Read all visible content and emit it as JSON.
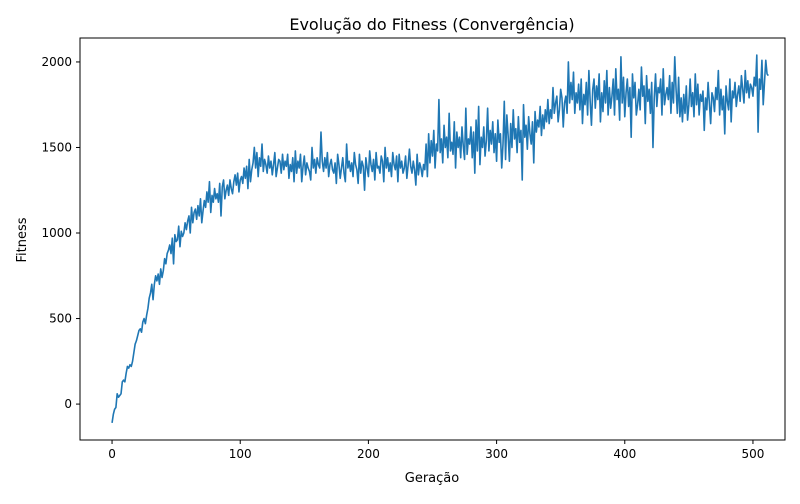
{
  "chart_data": {
    "type": "line",
    "title": "Evolução do Fitness (Convergência)",
    "xlabel": "Geração",
    "ylabel": "Fitness",
    "xlim": [
      -25,
      525
    ],
    "ylim": [
      -210,
      2140
    ],
    "xticks": [
      0,
      100,
      200,
      300,
      400,
      500
    ],
    "yticks": [
      0,
      500,
      1000,
      1500,
      2000
    ],
    "grid": false,
    "series": [
      {
        "color": "#1f77b4",
        "x_start": 0,
        "x_step": 1,
        "values": [
          -110,
          -60,
          -30,
          -20,
          60,
          40,
          50,
          60,
          130,
          140,
          130,
          180,
          220,
          210,
          230,
          220,
          250,
          300,
          350,
          370,
          400,
          430,
          440,
          420,
          480,
          500,
          470,
          520,
          560,
          620,
          650,
          700,
          610,
          700,
          750,
          720,
          760,
          700,
          790,
          740,
          780,
          850,
          820,
          880,
          900,
          930,
          880,
          970,
          820,
          990,
          950,
          960,
          1040,
          920,
          1010,
          980,
          1000,
          1060,
          1020,
          1070,
          1100,
          1000,
          1150,
          1060,
          1120,
          1140,
          1080,
          1160,
          1100,
          1200,
          1060,
          1130,
          1190,
          1150,
          1240,
          1180,
          1300,
          1120,
          1220,
          1180,
          1260,
          1200,
          1230,
          1180,
          1290,
          1100,
          1270,
          1310,
          1200,
          1250,
          1280,
          1220,
          1310,
          1260,
          1230,
          1300,
          1340,
          1280,
          1350,
          1240,
          1310,
          1330,
          1290,
          1380,
          1320,
          1390,
          1260,
          1430,
          1300,
          1370,
          1410,
          1500,
          1380,
          1470,
          1330,
          1440,
          1390,
          1520,
          1360,
          1430,
          1400,
          1350,
          1450,
          1380,
          1420,
          1340,
          1400,
          1470,
          1330,
          1380,
          1430,
          1420,
          1350,
          1460,
          1370,
          1420,
          1390,
          1460,
          1320,
          1400,
          1360,
          1440,
          1300,
          1480,
          1350,
          1420,
          1380,
          1460,
          1300,
          1390,
          1450,
          1340,
          1410,
          1380,
          1360,
          1310,
          1500,
          1380,
          1430,
          1350,
          1440,
          1400,
          1380,
          1590,
          1420,
          1360,
          1440,
          1380,
          1470,
          1330,
          1400,
          1430,
          1370,
          1350,
          1410,
          1290,
          1460,
          1400,
          1320,
          1380,
          1440,
          1350,
          1300,
          1520,
          1380,
          1420,
          1360,
          1410,
          1330,
          1470,
          1400,
          1370,
          1290,
          1460,
          1350,
          1420,
          1390,
          1250,
          1440,
          1380,
          1330,
          1480,
          1400,
          1360,
          1430,
          1310,
          1470,
          1380,
          1390,
          1350,
          1450,
          1420,
          1300,
          1500,
          1380,
          1440,
          1360,
          1410,
          1330,
          1470,
          1400,
          1370,
          1450,
          1300,
          1460,
          1380,
          1420,
          1350,
          1380,
          1450,
          1320,
          1400,
          1490,
          1390,
          1350,
          1420,
          1370,
          1280,
          1460,
          1340,
          1410,
          1380,
          1330,
          1400,
          1370,
          1520,
          1330,
          1580,
          1410,
          1540,
          1450,
          1600,
          1380,
          1520,
          1480,
          1780,
          1470,
          1550,
          1410,
          1630,
          1500,
          1560,
          1440,
          1700,
          1480,
          1530,
          1460,
          1650,
          1380,
          1590,
          1500,
          1560,
          1440,
          1620,
          1510,
          1430,
          1730,
          1460,
          1550,
          1520,
          1620,
          1440,
          1590,
          1350,
          1660,
          1480,
          1740,
          1400,
          1560,
          1500,
          1620,
          1450,
          1540,
          1730,
          1480,
          1600,
          1520,
          1650,
          1470,
          1580,
          1420,
          1660,
          1530,
          1580,
          1380,
          1520,
          1770,
          1430,
          1690,
          1570,
          1420,
          1640,
          1500,
          1720,
          1550,
          1610,
          1470,
          1680,
          1530,
          1600,
          1310,
          1750,
          1560,
          1630,
          1490,
          1680,
          1580,
          1520,
          1650,
          1410,
          1710,
          1590,
          1660,
          1620,
          1740,
          1570,
          1690,
          1610,
          1720,
          1650,
          1780,
          1640,
          1720,
          1670,
          1850,
          1700,
          1760,
          1800,
          1650,
          1720,
          1840,
          1790,
          1620,
          1760,
          1800,
          1700,
          2000,
          1760,
          1880,
          1780,
          1940,
          1700,
          1820,
          1760,
          1870,
          1720,
          1900,
          1640,
          1810,
          1750,
          1880,
          1690,
          1950,
          1770,
          1630,
          1840,
          1900,
          1730,
          1860,
          1780,
          1930,
          1650,
          1820,
          1710,
          1890,
          1760,
          1950,
          1690,
          1850,
          1730,
          1800,
          1900,
          1690,
          1960,
          1780,
          1840,
          1660,
          2030,
          1760,
          1910,
          1680,
          1820,
          1900,
          1740,
          1850,
          1560,
          1930,
          1790,
          1880,
          1690,
          1750,
          1840,
          1720,
          1970,
          1800,
          1860,
          1640,
          1920,
          1770,
          1840,
          1700,
          1880,
          1500,
          1790,
          1930,
          1740,
          1850,
          1820,
          1900,
          1690,
          1960,
          1750,
          1810,
          1850,
          1780,
          1920,
          1700,
          1880,
          1760,
          2030,
          1840,
          1700,
          1910,
          1680,
          1790,
          1650,
          1810,
          1700,
          1860,
          1660,
          1750,
          1900,
          1740,
          1820,
          1680,
          1930,
          1750,
          1870,
          1690,
          1810,
          1770,
          1830,
          1600,
          1790,
          1720,
          1880,
          1760,
          1640,
          1820,
          1790,
          1710,
          1850,
          1780,
          1950,
          1690,
          1840,
          1720,
          1800,
          1580,
          1860,
          1770,
          1720,
          1900,
          1650,
          1830,
          1790,
          1880,
          1740,
          1810,
          1860,
          1770,
          1920,
          1840,
          1760,
          1950,
          1820,
          1890,
          1790,
          1870,
          1850,
          1800,
          1910,
          1860,
          2040,
          1590,
          1900,
          1840,
          2010,
          1750,
          1880,
          2010,
          1930,
          1920
        ]
      }
    ]
  }
}
